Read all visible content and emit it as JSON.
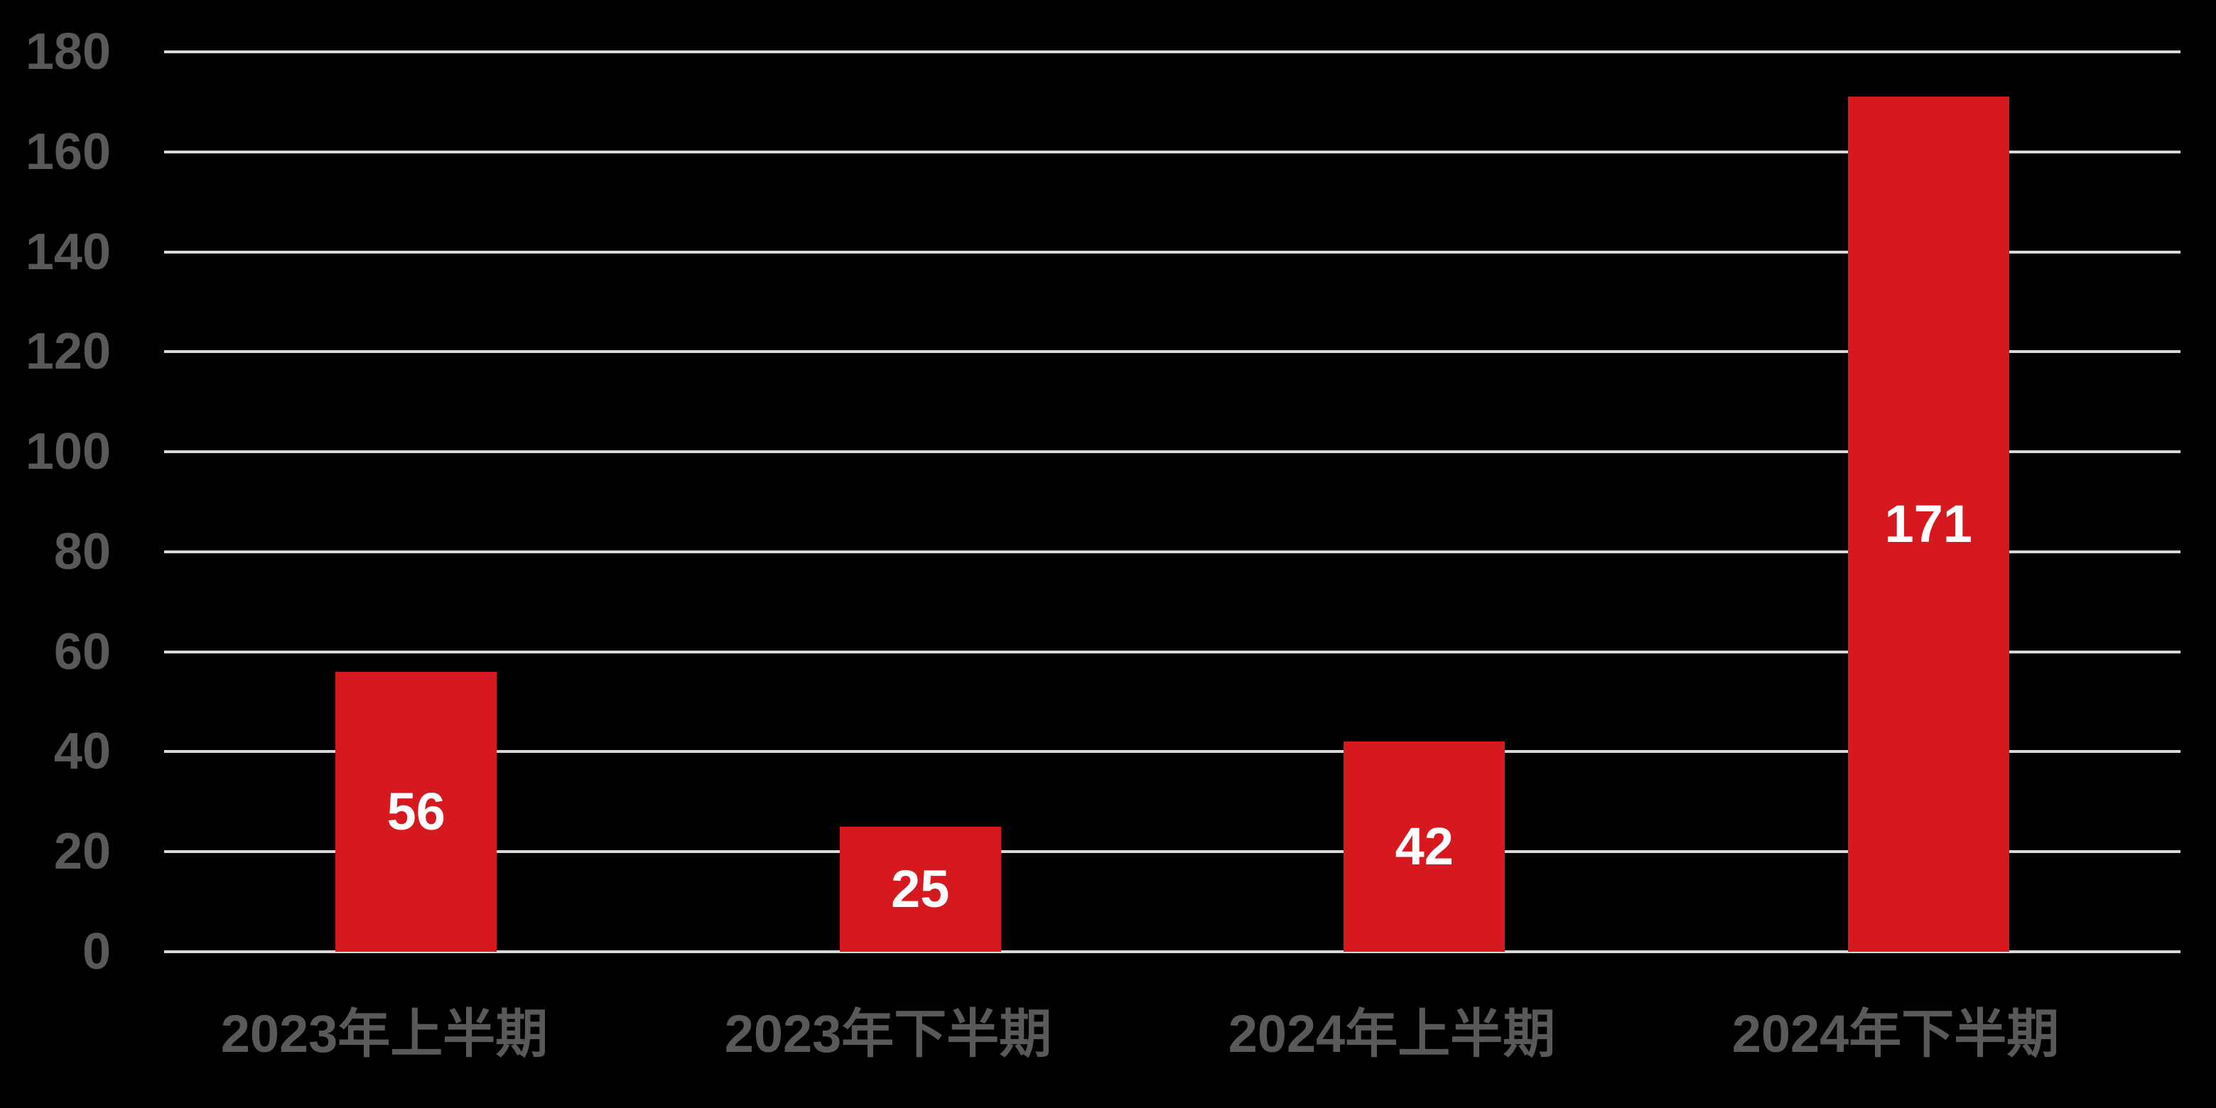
{
  "chart_data": {
    "type": "bar",
    "title": "",
    "xlabel": "",
    "ylabel": "",
    "categories": [
      "2023年上半期",
      "2023年下半期",
      "2024年上半期",
      "2024年下半期"
    ],
    "values": [
      56,
      25,
      42,
      171
    ],
    "data_labels": [
      "56",
      "25",
      "42",
      "171"
    ],
    "ylim": [
      0,
      180
    ],
    "ytick_step": 20,
    "yticks": [
      0,
      20,
      40,
      60,
      80,
      100,
      120,
      140,
      160,
      180
    ],
    "ytick_labels": [
      "0",
      "20",
      "40",
      "60",
      "80",
      "100",
      "120",
      "140",
      "160",
      "180"
    ],
    "grid": true,
    "legend": false,
    "colors": {
      "background": "#000000",
      "bar": "#d6191f",
      "data_label": "#ffffff",
      "axis_text": "#595959",
      "gridline": "#d9d9d9"
    }
  }
}
